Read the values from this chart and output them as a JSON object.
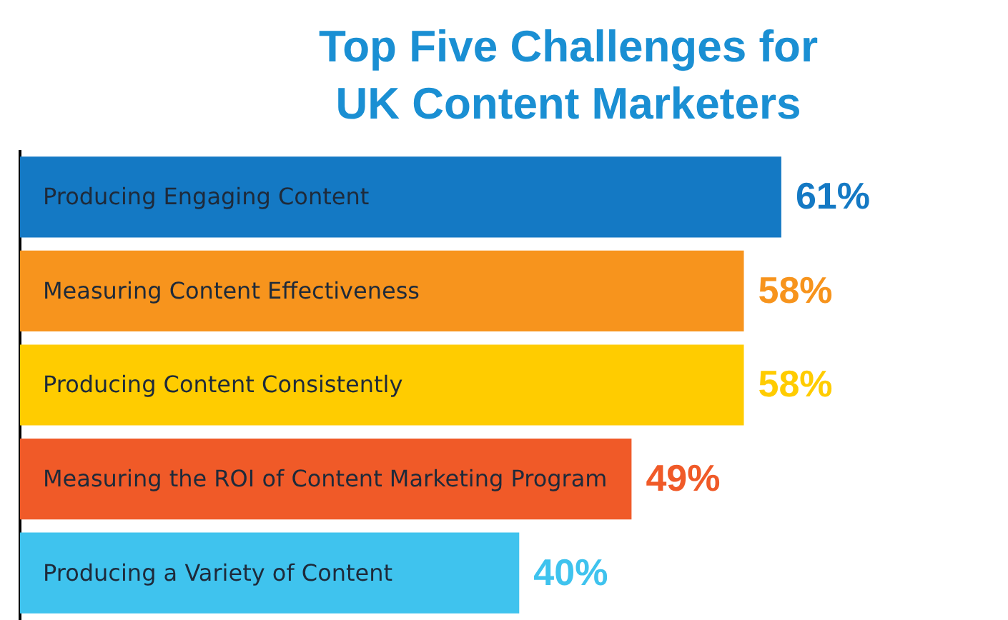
{
  "chart_data": {
    "type": "bar",
    "orientation": "horizontal",
    "title": "Top Five Challenges for UK Content Marketers",
    "categories": [
      "Producing Engaging Content",
      "Measuring Content Effectiveness",
      "Producing Content Consistently",
      "Measuring the ROI of Content Marketing Program",
      "Producing a Variety of Content"
    ],
    "values": [
      61,
      58,
      58,
      49,
      40
    ],
    "colors": [
      "#1479c4",
      "#f7941d",
      "#ffcc00",
      "#f05a28",
      "#3fc3ee"
    ],
    "value_labels": [
      "61%",
      "58%",
      "58%",
      "49%",
      "40%"
    ],
    "grid": false,
    "legend": false
  }
}
